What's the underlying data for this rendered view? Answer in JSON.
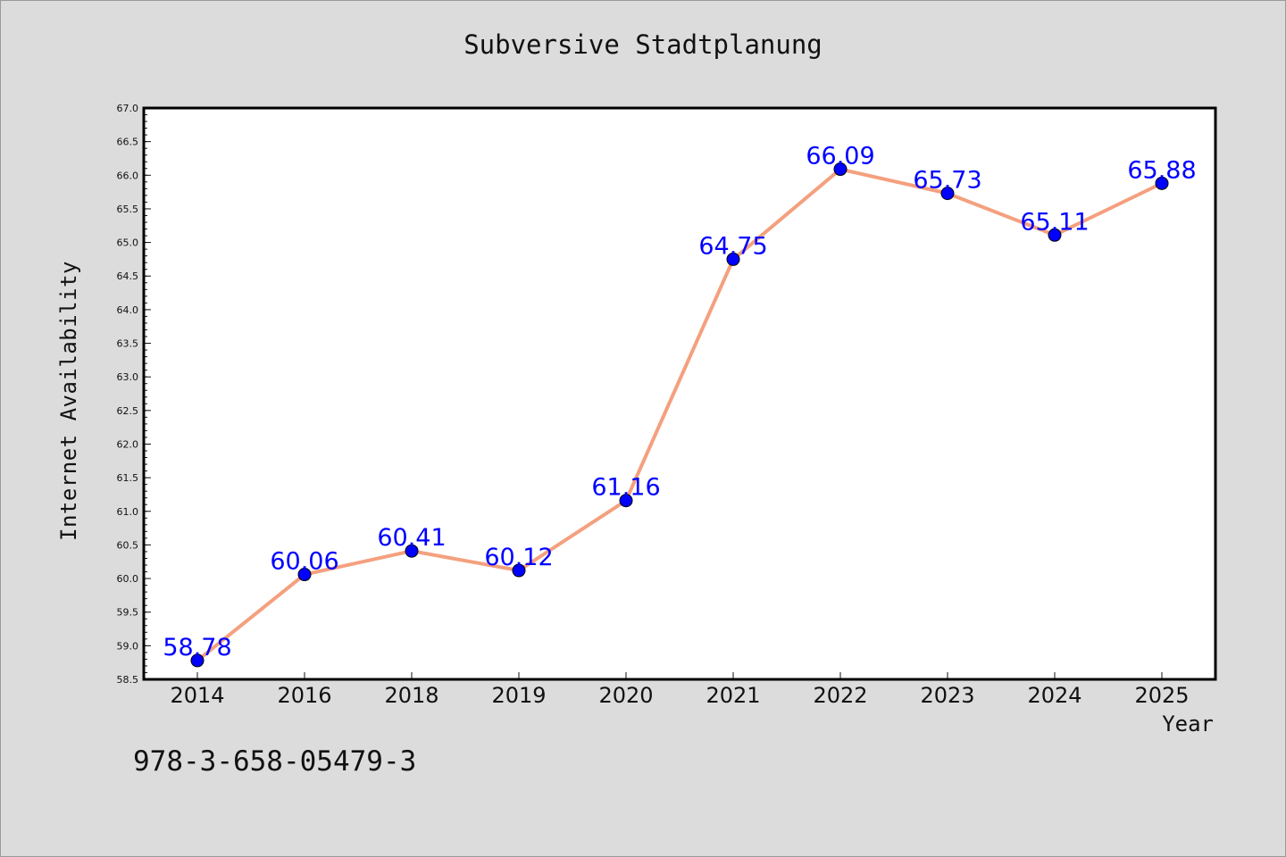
{
  "chart_data": {
    "type": "line",
    "title": "Subversive Stadtplanung",
    "xlabel": "Year",
    "ylabel": "Internet Availability",
    "categories": [
      "2014",
      "2016",
      "2018",
      "2019",
      "2020",
      "2021",
      "2022",
      "2023",
      "2024",
      "2025"
    ],
    "series": [
      {
        "values": [
          58.78,
          60.06,
          60.41,
          60.12,
          61.16,
          64.75,
          66.09,
          65.73,
          65.11,
          65.88
        ],
        "data_labels": [
          "58.78",
          "60.06",
          "60.41",
          "60.12",
          "61.16",
          "64.75",
          "66.09",
          "65.73",
          "65.11",
          "65.88"
        ],
        "line_color": "#f4a07e",
        "marker_color": "#0000ff"
      }
    ],
    "ylim": [
      58.5,
      67.0
    ],
    "y_ticks": [
      "58.5",
      "59.0",
      "59.5",
      "60.0",
      "60.5",
      "61.0",
      "61.5",
      "62.0",
      "62.5",
      "63.0",
      "63.5",
      "64.0",
      "64.5",
      "65.0",
      "65.5",
      "66.0",
      "66.5",
      "67.0"
    ],
    "grid": false,
    "legend": "none"
  },
  "footer": {
    "isbn": "978-3-658-05479-3"
  },
  "colors": {
    "background": "#dcdcdc",
    "plot_background": "#ffffff",
    "line": "#f4a07e",
    "marker": "#0000ff",
    "data_label": "#0000ff"
  }
}
